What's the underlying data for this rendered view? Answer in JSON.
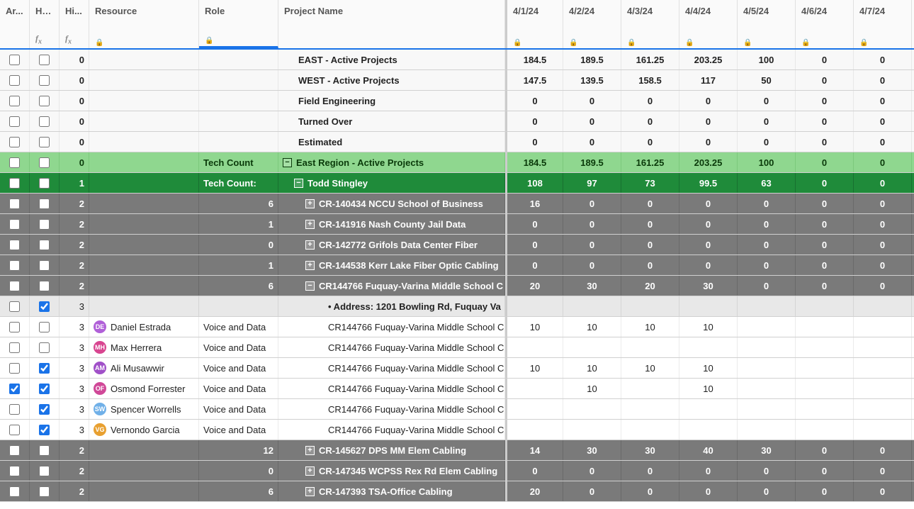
{
  "headers": {
    "ar": "Ar...",
    "ho": "Ho... Sc...",
    "hi": "Hi...",
    "res": "Resource",
    "role": "Role",
    "proj": "Project Name",
    "dates": [
      "4/1/24",
      "4/2/24",
      "4/3/24",
      "4/4/24",
      "4/5/24",
      "4/6/24",
      "4/7/24"
    ]
  },
  "summary_rows": [
    {
      "hi": "0",
      "proj": "EAST - Active Projects",
      "vals": [
        "184.5",
        "189.5",
        "161.25",
        "203.25",
        "100",
        "0",
        "0"
      ]
    },
    {
      "hi": "0",
      "proj": "WEST - Active Projects",
      "vals": [
        "147.5",
        "139.5",
        "158.5",
        "117",
        "50",
        "0",
        "0"
      ]
    },
    {
      "hi": "0",
      "proj": "Field Engineering",
      "vals": [
        "0",
        "0",
        "0",
        "0",
        "0",
        "0",
        "0"
      ]
    },
    {
      "hi": "0",
      "proj": "Turned Over",
      "vals": [
        "0",
        "0",
        "0",
        "0",
        "0",
        "0",
        "0"
      ]
    },
    {
      "hi": "0",
      "proj": "Estimated",
      "vals": [
        "0",
        "0",
        "0",
        "0",
        "0",
        "0",
        "0"
      ]
    }
  ],
  "region_row": {
    "hi": "0",
    "role": "Tech Count",
    "proj": "East Region - Active Projects",
    "vals": [
      "184.5",
      "189.5",
      "161.25",
      "203.25",
      "100",
      "0",
      "0"
    ],
    "exp": "−"
  },
  "manager_row": {
    "hi": "1",
    "role": "Tech Count:",
    "proj": "Todd Stingley",
    "vals": [
      "108",
      "97",
      "73",
      "99.5",
      "63",
      "0",
      "0"
    ],
    "exp": "−"
  },
  "proj_rows_1": [
    {
      "hi": "2",
      "role_val": "6",
      "exp": "+",
      "proj": "CR-140434 NCCU School of Business",
      "vals": [
        "16",
        "0",
        "0",
        "0",
        "0",
        "0",
        "0"
      ]
    },
    {
      "hi": "2",
      "role_val": "1",
      "exp": "+",
      "proj": "CR-141916 Nash County Jail Data",
      "vals": [
        "0",
        "0",
        "0",
        "0",
        "0",
        "0",
        "0"
      ]
    },
    {
      "hi": "2",
      "role_val": "0",
      "exp": "+",
      "proj": "CR-142772 Grifols Data Center Fiber",
      "vals": [
        "0",
        "0",
        "0",
        "0",
        "0",
        "0",
        "0"
      ]
    },
    {
      "hi": "2",
      "role_val": "1",
      "exp": "+",
      "proj": "CR-144538 Kerr Lake Fiber Optic Cabling",
      "vals": [
        "0",
        "0",
        "0",
        "0",
        "0",
        "0",
        "0"
      ]
    },
    {
      "hi": "2",
      "role_val": "6",
      "exp": "−",
      "proj": "CR144766 Fuquay-Varina Middle School C",
      "vals": [
        "20",
        "30",
        "20",
        "30",
        "0",
        "0",
        "0"
      ]
    }
  ],
  "addr_row": {
    "hi": "3",
    "proj": "• Address: 1201 Bowling Rd, Fuquay Va",
    "ho_checked": true
  },
  "resource_rows": [
    {
      "hi": "3",
      "avatar": "DE",
      "avatar_color": "#b060d8",
      "name": "Daniel Estrada",
      "role": "Voice and Data",
      "proj": "CR144766 Fuquay-Varina Middle School C",
      "vals": [
        "10",
        "10",
        "10",
        "10",
        "",
        "",
        ""
      ],
      "ar": false,
      "ho": false
    },
    {
      "hi": "3",
      "avatar": "MH",
      "avatar_color": "#d84590",
      "name": "Max Herrera",
      "role": "Voice and Data",
      "proj": "CR144766 Fuquay-Varina Middle School C",
      "vals": [
        "",
        "",
        "",
        "",
        "",
        "",
        ""
      ],
      "ar": false,
      "ho": false
    },
    {
      "hi": "3",
      "avatar": "AM",
      "avatar_color": "#a050c8",
      "name": "Ali Musawwir",
      "role": "Voice and Data",
      "proj": "CR144766 Fuquay-Varina Middle School C",
      "vals": [
        "10",
        "10",
        "10",
        "10",
        "",
        "",
        ""
      ],
      "ar": false,
      "ho": true
    },
    {
      "hi": "3",
      "avatar": "OF",
      "avatar_color": "#d04898",
      "name": "Osmond Forrester",
      "role": "Voice and Data",
      "proj": "CR144766 Fuquay-Varina Middle School C",
      "vals": [
        "",
        "10",
        "",
        "10",
        "",
        "",
        ""
      ],
      "ar": true,
      "ho": true
    },
    {
      "hi": "3",
      "avatar": "SW",
      "avatar_color": "#70b0e8",
      "name": "Spencer Worrells",
      "role": "Voice and Data",
      "proj": "CR144766 Fuquay-Varina Middle School C",
      "vals": [
        "",
        "",
        "",
        "",
        "",
        "",
        ""
      ],
      "ar": false,
      "ho": true
    },
    {
      "hi": "3",
      "avatar": "VG",
      "avatar_color": "#e8a030",
      "name": "Vernondo Garcia",
      "role": "Voice and Data",
      "proj": "CR144766 Fuquay-Varina Middle School C",
      "vals": [
        "",
        "",
        "",
        "",
        "",
        "",
        ""
      ],
      "ar": false,
      "ho": true
    }
  ],
  "proj_rows_2": [
    {
      "hi": "2",
      "role_val": "12",
      "exp": "+",
      "proj": "CR-145627 DPS MM Elem Cabling",
      "vals": [
        "14",
        "30",
        "30",
        "40",
        "30",
        "0",
        "0"
      ]
    },
    {
      "hi": "2",
      "role_val": "0",
      "exp": "+",
      "proj": "CR-147345 WCPSS Rex Rd Elem Cabling",
      "vals": [
        "0",
        "0",
        "0",
        "0",
        "0",
        "0",
        "0"
      ]
    },
    {
      "hi": "2",
      "role_val": "6",
      "exp": "+",
      "proj": "CR-147393 TSA-Office Cabling",
      "vals": [
        "20",
        "0",
        "0",
        "0",
        "0",
        "0",
        "0"
      ]
    }
  ]
}
